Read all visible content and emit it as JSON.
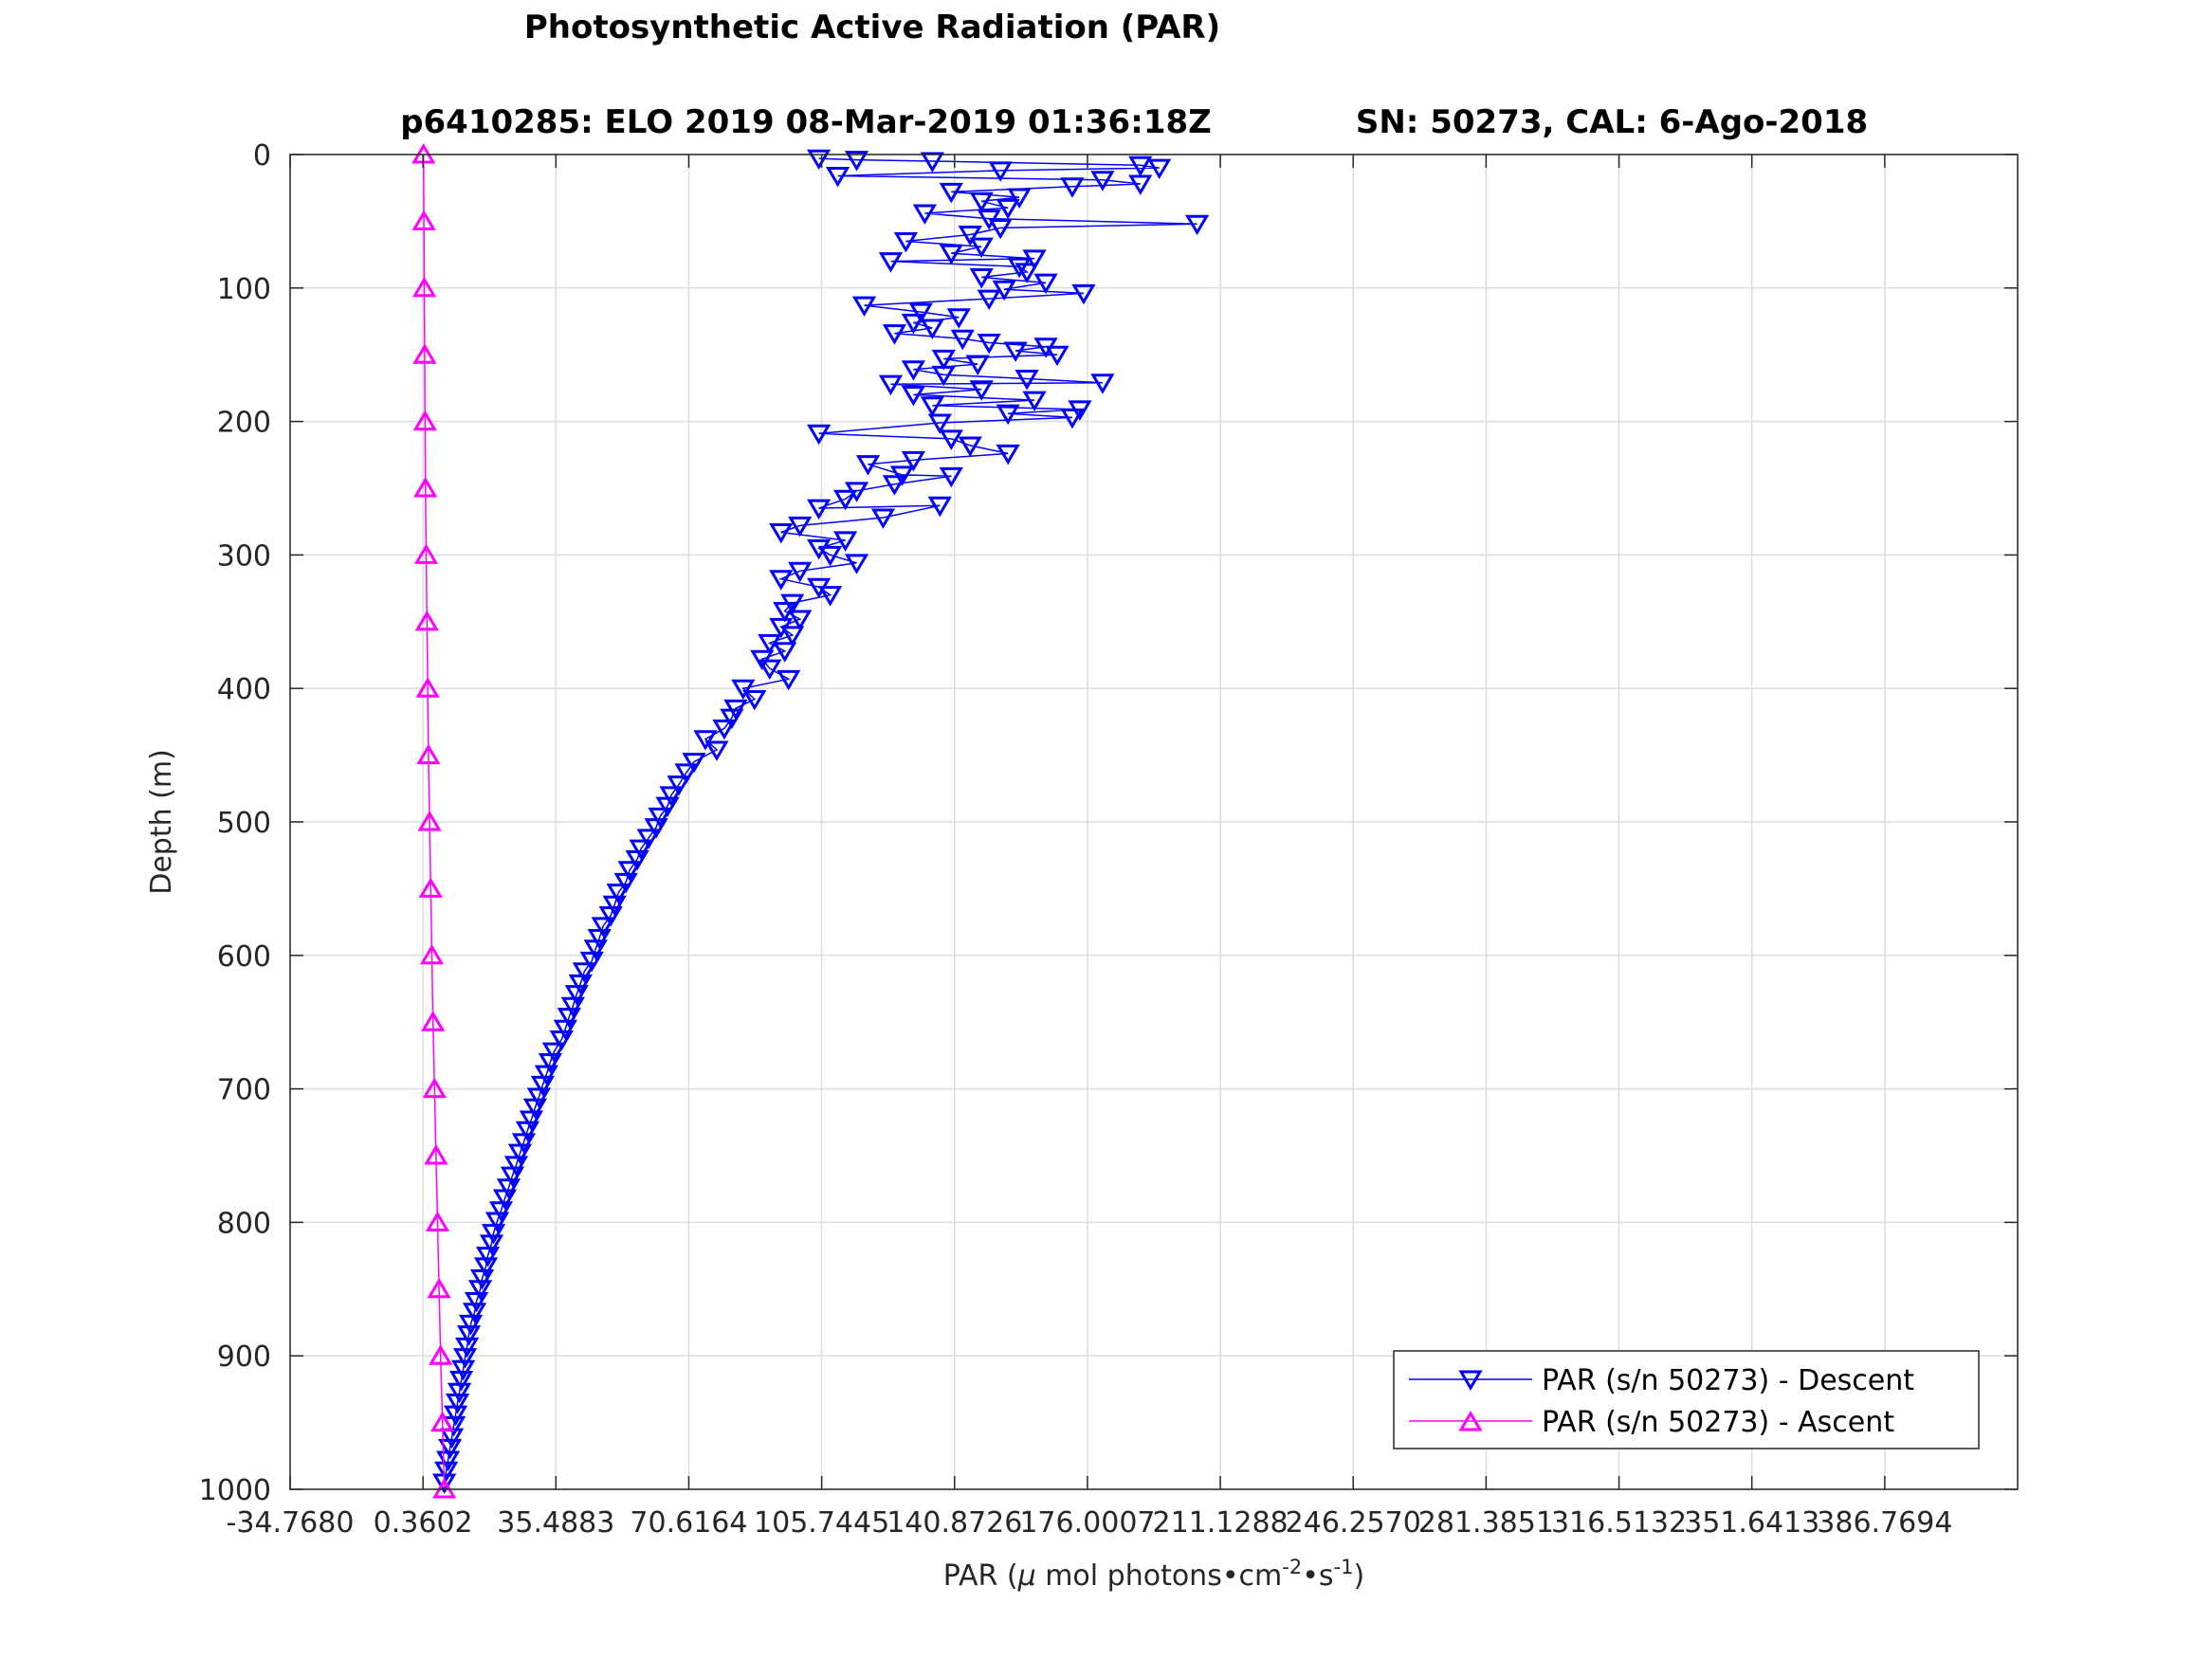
{
  "chart_data": {
    "type": "scatter",
    "title": "Photosynthetic Active Radiation (PAR)",
    "subtitle_left": "p6410285: ELO 2019 08-Mar-2019 01:36:18Z",
    "subtitle_right": "SN: 50273, CAL: 6-Ago-2018",
    "xlabel_prefix": "PAR (",
    "xlabel_mu": "μ",
    "xlabel_mid": " mol photons•cm",
    "xlabel_exp1": "-2",
    "xlabel_mid2": "•s",
    "xlabel_exp2": "-1",
    "xlabel_suffix": ")",
    "ylabel": "Depth (m)",
    "xlim": [
      -34.768,
      421.8975
    ],
    "ylim": [
      1000,
      0
    ],
    "y_reversed": true,
    "grid": true,
    "legend_position": "bottom-right",
    "xtick_values": [
      -34.768,
      0.3602,
      35.4883,
      70.6164,
      105.7445,
      140.8726,
      176.0007,
      211.1288,
      246.257,
      281.3851,
      316.5132,
      351.6413,
      386.7694
    ],
    "xtick_labels": [
      "-34.7680",
      "0.3602",
      "35.4883",
      "70.6164",
      "105.7445",
      "140.8726",
      "176.0007",
      "211.1288",
      "246.2570",
      "281.3851",
      "316.5132",
      "351.6413",
      "386.7694"
    ],
    "ytick_values": [
      0,
      100,
      200,
      300,
      400,
      500,
      600,
      700,
      800,
      900,
      1000
    ],
    "ytick_labels": [
      "0",
      "100",
      "200",
      "300",
      "400",
      "500",
      "600",
      "700",
      "800",
      "900",
      "1000"
    ],
    "series": [
      {
        "name": "PAR (s/n 50273) - Descent",
        "color": "#0000FF",
        "marker": "triangle-down",
        "points": [
          [
            105,
            3
          ],
          [
            115,
            4
          ],
          [
            135,
            5
          ],
          [
            190,
            8
          ],
          [
            195,
            10
          ],
          [
            153,
            12
          ],
          [
            110,
            16
          ],
          [
            180,
            19
          ],
          [
            190,
            22
          ],
          [
            172,
            24
          ],
          [
            140,
            28
          ],
          [
            158,
            32
          ],
          [
            148,
            35
          ],
          [
            155,
            40
          ],
          [
            133,
            44
          ],
          [
            150,
            48
          ],
          [
            205,
            52
          ],
          [
            153,
            55
          ],
          [
            145,
            60
          ],
          [
            128,
            65
          ],
          [
            148,
            69
          ],
          [
            140,
            74
          ],
          [
            162,
            78
          ],
          [
            124,
            80
          ],
          [
            158,
            84
          ],
          [
            160,
            88
          ],
          [
            148,
            92
          ],
          [
            165,
            96
          ],
          [
            154,
            101
          ],
          [
            175,
            104
          ],
          [
            150,
            108
          ],
          [
            117,
            113
          ],
          [
            132,
            118
          ],
          [
            142,
            122
          ],
          [
            130,
            126
          ],
          [
            135,
            130
          ],
          [
            125,
            134
          ],
          [
            143,
            138
          ],
          [
            150,
            141
          ],
          [
            165,
            144
          ],
          [
            157,
            147
          ],
          [
            168,
            150
          ],
          [
            138,
            153
          ],
          [
            147,
            157
          ],
          [
            130,
            161
          ],
          [
            138,
            165
          ],
          [
            160,
            168
          ],
          [
            180,
            171
          ],
          [
            124,
            172
          ],
          [
            148,
            176
          ],
          [
            130,
            180
          ],
          [
            162,
            184
          ],
          [
            135,
            188
          ],
          [
            174,
            191
          ],
          [
            155,
            194
          ],
          [
            172,
            197
          ],
          [
            137,
            201
          ],
          [
            105,
            209
          ],
          [
            140,
            213
          ],
          [
            145,
            218
          ],
          [
            155,
            224
          ],
          [
            130,
            229
          ],
          [
            118,
            232
          ],
          [
            127,
            240
          ],
          [
            140,
            241
          ],
          [
            125,
            247
          ],
          [
            115,
            252
          ],
          [
            112,
            258
          ],
          [
            105,
            265
          ],
          [
            137,
            263
          ],
          [
            122,
            272
          ],
          [
            100,
            278
          ],
          [
            95,
            283
          ],
          [
            112,
            289
          ],
          [
            105,
            295
          ],
          [
            108,
            300
          ],
          [
            115,
            306
          ],
          [
            100,
            312
          ],
          [
            95,
            318
          ],
          [
            105,
            324
          ],
          [
            108,
            330
          ],
          [
            98,
            336
          ],
          [
            96,
            342
          ],
          [
            100,
            348
          ],
          [
            95,
            354
          ],
          [
            98,
            360
          ],
          [
            92,
            366
          ],
          [
            96,
            372
          ],
          [
            90,
            378
          ],
          [
            92,
            385
          ],
          [
            97,
            393
          ],
          [
            85,
            400
          ],
          [
            88,
            408
          ],
          [
            83,
            415
          ],
          [
            82,
            422
          ],
          [
            80,
            430
          ],
          [
            75,
            438
          ],
          [
            78,
            446
          ],
          [
            72,
            455
          ],
          [
            70,
            463
          ],
          [
            68,
            472
          ],
          [
            66,
            480
          ],
          [
            65,
            488
          ],
          [
            63,
            496
          ],
          [
            62,
            504
          ],
          [
            60,
            512
          ],
          [
            58,
            520
          ],
          [
            57,
            528
          ],
          [
            55,
            536
          ],
          [
            54,
            545
          ],
          [
            52,
            553
          ],
          [
            51,
            562
          ],
          [
            50,
            570
          ],
          [
            48,
            578
          ],
          [
            47,
            587
          ],
          [
            46,
            595
          ],
          [
            45,
            604
          ],
          [
            43,
            612
          ],
          [
            42,
            621
          ],
          [
            41,
            629
          ],
          [
            40,
            638
          ],
          [
            39,
            646
          ],
          [
            38,
            655
          ],
          [
            37,
            663
          ],
          [
            35,
            672
          ],
          [
            34,
            680
          ],
          [
            33,
            689
          ],
          [
            32,
            697
          ],
          [
            31,
            706
          ],
          [
            30,
            714
          ],
          [
            29,
            723
          ],
          [
            28,
            731
          ],
          [
            27,
            740
          ],
          [
            26,
            748
          ],
          [
            25,
            757
          ],
          [
            24,
            765
          ],
          [
            23,
            774
          ],
          [
            22,
            782
          ],
          [
            21,
            791
          ],
          [
            20,
            799
          ],
          [
            19,
            808
          ],
          [
            18.5,
            816
          ],
          [
            17.5,
            825
          ],
          [
            17,
            833
          ],
          [
            16,
            842
          ],
          [
            15.5,
            850
          ],
          [
            14.5,
            859
          ],
          [
            14,
            867
          ],
          [
            13,
            876
          ],
          [
            12.5,
            884
          ],
          [
            12,
            893
          ],
          [
            11.5,
            901
          ],
          [
            11,
            910
          ],
          [
            10.5,
            918
          ],
          [
            10,
            927
          ],
          [
            9.5,
            935
          ],
          [
            9,
            944
          ],
          [
            8.5,
            952
          ],
          [
            8,
            961
          ],
          [
            7.5,
            969
          ],
          [
            7,
            978
          ],
          [
            6.5,
            986
          ],
          [
            6,
            995
          ]
        ]
      },
      {
        "name": "PAR (s/n 50273) - Ascent",
        "color": "#FF00FF",
        "marker": "triangle-up",
        "points": [
          [
            0.5,
            0
          ],
          [
            0.6,
            50
          ],
          [
            0.7,
            100
          ],
          [
            0.8,
            150
          ],
          [
            0.9,
            200
          ],
          [
            1.0,
            250
          ],
          [
            1.2,
            300
          ],
          [
            1.4,
            350
          ],
          [
            1.6,
            400
          ],
          [
            1.8,
            450
          ],
          [
            2.1,
            500
          ],
          [
            2.4,
            550
          ],
          [
            2.7,
            600
          ],
          [
            3.0,
            650
          ],
          [
            3.4,
            700
          ],
          [
            3.8,
            750
          ],
          [
            4.2,
            800
          ],
          [
            4.6,
            850
          ],
          [
            5.0,
            900
          ],
          [
            5.5,
            950
          ],
          [
            6.0,
            1000
          ]
        ]
      }
    ]
  }
}
